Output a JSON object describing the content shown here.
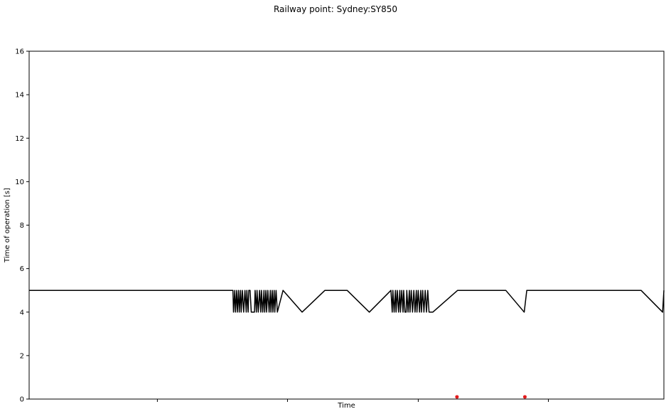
{
  "chart_data": {
    "type": "line",
    "title": "Railway point: Sydney:SY850",
    "xlabel": "Time",
    "ylabel": "Time of operation [s]",
    "ylim": [
      0,
      16
    ],
    "xlim": [
      0,
      100
    ],
    "yticks": [
      0,
      2,
      4,
      6,
      8,
      10,
      12,
      14,
      16
    ],
    "xticks": [
      20.2,
      40.7,
      61.3,
      81.8
    ],
    "xtick_labels": [
      "",
      "",
      "",
      ""
    ],
    "grid": false,
    "legend": "none",
    "series": [
      {
        "color": "#000000",
        "x": [
          0,
          32.1,
          32.2,
          32.4,
          32.5,
          32.7,
          32.8,
          33.0,
          33.1,
          33.3,
          33.4,
          33.6,
          33.8,
          34.0,
          34.2,
          34.3,
          34.5,
          34.6,
          34.8,
          35.0,
          35.2,
          35.3,
          35.5,
          35.6,
          35.8,
          35.9,
          36.1,
          36.3,
          36.5,
          36.6,
          36.8,
          37.0,
          37.1,
          37.3,
          37.4,
          37.6,
          37.8,
          38.0,
          38.1,
          38.3,
          38.4,
          38.6,
          38.7,
          38.9,
          39.1,
          40.0,
          43.0,
          46.6,
          50.1,
          53.6,
          57.0,
          57.2,
          57.3,
          57.5,
          57.7,
          57.8,
          58.0,
          58.2,
          58.4,
          58.5,
          58.7,
          58.9,
          59.0,
          59.2,
          59.4,
          59.5,
          59.7,
          59.9,
          60.0,
          60.2,
          60.4,
          60.6,
          60.8,
          61.0,
          61.1,
          61.3,
          61.5,
          61.7,
          61.8,
          62.0,
          62.2,
          62.4,
          62.6,
          62.8,
          63.0,
          63.2,
          63.6,
          67.5,
          75.1,
          78.0,
          78.4,
          78.8,
          96.4,
          99.8,
          100
        ],
        "y": [
          5,
          5,
          4,
          5,
          4,
          5,
          4,
          5,
          4,
          5,
          4,
          5,
          4,
          5,
          4,
          5,
          4,
          5,
          5,
          4,
          4,
          4,
          4,
          5,
          4,
          5,
          4,
          5,
          4,
          5,
          4,
          5,
          4,
          5,
          4,
          5,
          4,
          5,
          4,
          5,
          4,
          5,
          4,
          5,
          4,
          5,
          4,
          5,
          5,
          4,
          5,
          4,
          5,
          4,
          5,
          4,
          5,
          4,
          5,
          4,
          5,
          4,
          5,
          4,
          4,
          5,
          4,
          5,
          4,
          5,
          4,
          5,
          4,
          5,
          4,
          5,
          4,
          5,
          4,
          5,
          4,
          5,
          4,
          5,
          4,
          4,
          4,
          5,
          5,
          4,
          5,
          5,
          5,
          4,
          5
        ]
      },
      {
        "color": "#e31a1c",
        "mode": "markers",
        "x": [
          67.4,
          78.1
        ],
        "y": [
          0.1,
          0.1
        ]
      }
    ]
  }
}
